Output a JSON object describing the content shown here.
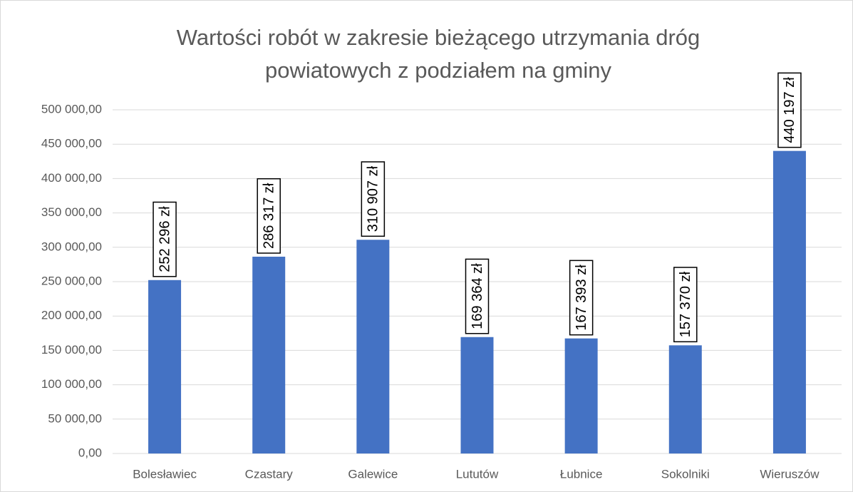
{
  "chart_data": {
    "type": "bar",
    "title": [
      "Wartości robót w zakresie bieżącego utrzymania dróg",
      "powiatowych z podziałem na gminy"
    ],
    "categories": [
      "Bolesławiec",
      "Czastary",
      "Galewice",
      "Lututów",
      "Łubnice",
      "Sokolniki",
      "Wieruszów"
    ],
    "values": [
      252296,
      286317,
      310907,
      169364,
      167393,
      157370,
      440197
    ],
    "value_labels": [
      "252 296 zł",
      "286 317 zł",
      "310 907 zł",
      "169 364 zł",
      "167 393 zł",
      "157 370 zł",
      "440 197 zł"
    ],
    "color": "#4472c4",
    "ylim": [
      0,
      500000
    ],
    "yticks": [
      {
        "value": 0,
        "label": "0,00"
      },
      {
        "value": 50000,
        "label": "50 000,00"
      },
      {
        "value": 100000,
        "label": "100 000,00"
      },
      {
        "value": 150000,
        "label": "150 000,00"
      },
      {
        "value": 200000,
        "label": "200 000,00"
      },
      {
        "value": 250000,
        "label": "250 000,00"
      },
      {
        "value": 300000,
        "label": "300 000,00"
      },
      {
        "value": 350000,
        "label": "350 000,00"
      },
      {
        "value": 400000,
        "label": "400 000,00"
      },
      {
        "value": 450000,
        "label": "450 000,00"
      },
      {
        "value": 500000,
        "label": "500 000,00"
      }
    ],
    "grid": true
  }
}
